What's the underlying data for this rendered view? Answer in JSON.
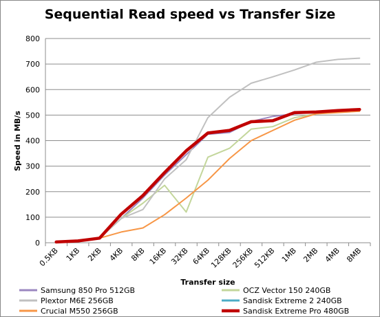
{
  "chart_data": {
    "type": "line",
    "title": "Sequential Read speed vs Transfer Size",
    "xlabel": "Transfer size",
    "ylabel": "Speed in MB/s",
    "ylim": [
      0,
      800
    ],
    "yticks": [
      0,
      100,
      200,
      300,
      400,
      500,
      600,
      700,
      800
    ],
    "grid": true,
    "legend_position": "bottom",
    "categories": [
      "0.5KB",
      "1KB",
      "2KB",
      "4KB",
      "8KB",
      "16KB",
      "32KB",
      "64KB",
      "128KB",
      "256KB",
      "512KB",
      "1MB",
      "2MB",
      "4MB",
      "8MB"
    ],
    "series": [
      {
        "name": "Samsung 850 Pro 512GB",
        "color": "#9b87c0",
        "width": 2,
        "values": [
          3,
          7,
          18,
          95,
          175,
          265,
          345,
          425,
          432,
          475,
          495,
          505,
          512,
          517,
          520
        ]
      },
      {
        "name": "OCZ Vector 150 240GB",
        "color": "#c3d69b",
        "width": 2,
        "values": [
          3,
          7,
          18,
          95,
          155,
          225,
          120,
          335,
          370,
          445,
          455,
          490,
          505,
          512,
          515
        ]
      },
      {
        "name": "Plextor M6E 256GB",
        "color": "#c0c0c0",
        "width": 2,
        "values": [
          3,
          7,
          18,
          95,
          130,
          250,
          325,
          490,
          570,
          625,
          650,
          677,
          707,
          718,
          723
        ]
      },
      {
        "name": "Sandisk Extreme 2 240GB",
        "color": "#4bacc6",
        "width": 2,
        "values": [
          3,
          7,
          18,
          110,
          185,
          275,
          360,
          428,
          440,
          472,
          478,
          508,
          510,
          518,
          520
        ]
      },
      {
        "name": "Crucial M550 256GB",
        "color": "#f79646",
        "width": 2,
        "values": [
          3,
          7,
          18,
          42,
          58,
          110,
          175,
          245,
          330,
          400,
          440,
          480,
          505,
          510,
          515
        ]
      },
      {
        "name": "Sandisk Extreme Pro 480GB",
        "color": "#c00000",
        "width": 4.5,
        "values": [
          3,
          7,
          18,
          112,
          185,
          275,
          360,
          430,
          440,
          474,
          478,
          510,
          512,
          518,
          522
        ]
      }
    ]
  }
}
